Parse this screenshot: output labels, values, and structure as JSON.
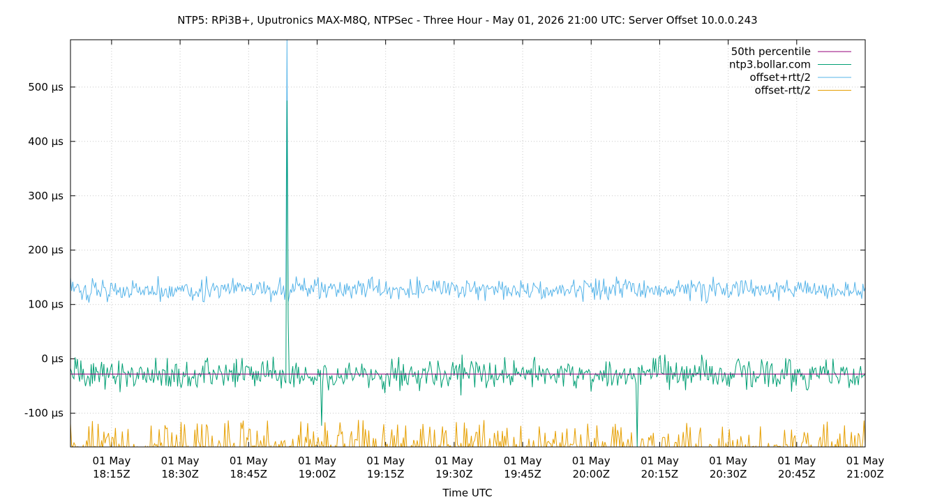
{
  "chart_data": {
    "type": "line",
    "title": "NTP5: RPi3B+, Uputronics MAX-M8Q, NTPSec - Three Hour - May 01, 2026 21:00 UTC: Server Offset 10.0.0.243",
    "xlabel": "Time UTC",
    "ylabel": "",
    "xlim": [
      "2026-05-01T18:06Z",
      "2026-05-01T21:00Z"
    ],
    "ylim": [
      -162,
      587
    ],
    "grid": true,
    "legend_position": "top-right",
    "y_ticks": [
      {
        "value": 500,
        "label": "500 µs"
      },
      {
        "value": 400,
        "label": "400 µs"
      },
      {
        "value": 300,
        "label": "300 µs"
      },
      {
        "value": 200,
        "label": "200 µs"
      },
      {
        "value": 100,
        "label": "100 µs"
      },
      {
        "value": 0,
        "label": "0 µs"
      },
      {
        "value": -100,
        "label": "-100 µs"
      }
    ],
    "x_ticks": [
      {
        "time": "2026-05-01T18:15Z",
        "label1": "01 May",
        "label2": "18:15Z"
      },
      {
        "time": "2026-05-01T18:30Z",
        "label1": "01 May",
        "label2": "18:30Z"
      },
      {
        "time": "2026-05-01T18:45Z",
        "label1": "01 May",
        "label2": "18:45Z"
      },
      {
        "time": "2026-05-01T19:00Z",
        "label1": "01 May",
        "label2": "19:00Z"
      },
      {
        "time": "2026-05-01T19:15Z",
        "label1": "01 May",
        "label2": "19:15Z"
      },
      {
        "time": "2026-05-01T19:30Z",
        "label1": "01 May",
        "label2": "19:30Z"
      },
      {
        "time": "2026-05-01T19:45Z",
        "label1": "01 May",
        "label2": "19:45Z"
      },
      {
        "time": "2026-05-01T20:00Z",
        "label1": "01 May",
        "label2": "20:00Z"
      },
      {
        "time": "2026-05-01T20:15Z",
        "label1": "01 May",
        "label2": "20:15Z"
      },
      {
        "time": "2026-05-01T20:30Z",
        "label1": "01 May",
        "label2": "20:30Z"
      },
      {
        "time": "2026-05-01T20:45Z",
        "label1": "01 May",
        "label2": "20:45Z"
      },
      {
        "time": "2026-05-01T21:00Z",
        "label1": "01 May",
        "label2": "21:00Z"
      }
    ],
    "series": [
      {
        "name": "50th percentile",
        "color": "#94007a",
        "kind": "constant",
        "value": -28
      },
      {
        "name": "ntp3.bollar.com",
        "color": "#009e73",
        "kind": "noise",
        "center": -28,
        "amplitude": 20,
        "spikes": [
          {
            "time": "2026-05-01T18:53:30Z",
            "value": 475
          },
          {
            "time": "2026-05-01T18:53:45Z",
            "value": 72
          },
          {
            "time": "2026-05-01T19:01Z",
            "value": -123
          },
          {
            "time": "2026-05-01T20:10Z",
            "value": -162
          }
        ]
      },
      {
        "name": "offset+rtt/2",
        "color": "#56b4e9",
        "kind": "noise",
        "center": 128,
        "amplitude": 14,
        "spikes": [
          {
            "time": "2026-05-01T18:53:30Z",
            "value": 587
          },
          {
            "time": "2026-05-01T18:53:45Z",
            "value": 105
          }
        ]
      },
      {
        "name": "offset-rtt/2",
        "color": "#e69f00",
        "kind": "floor-spikes",
        "floor": -162,
        "peak": -112
      }
    ]
  }
}
